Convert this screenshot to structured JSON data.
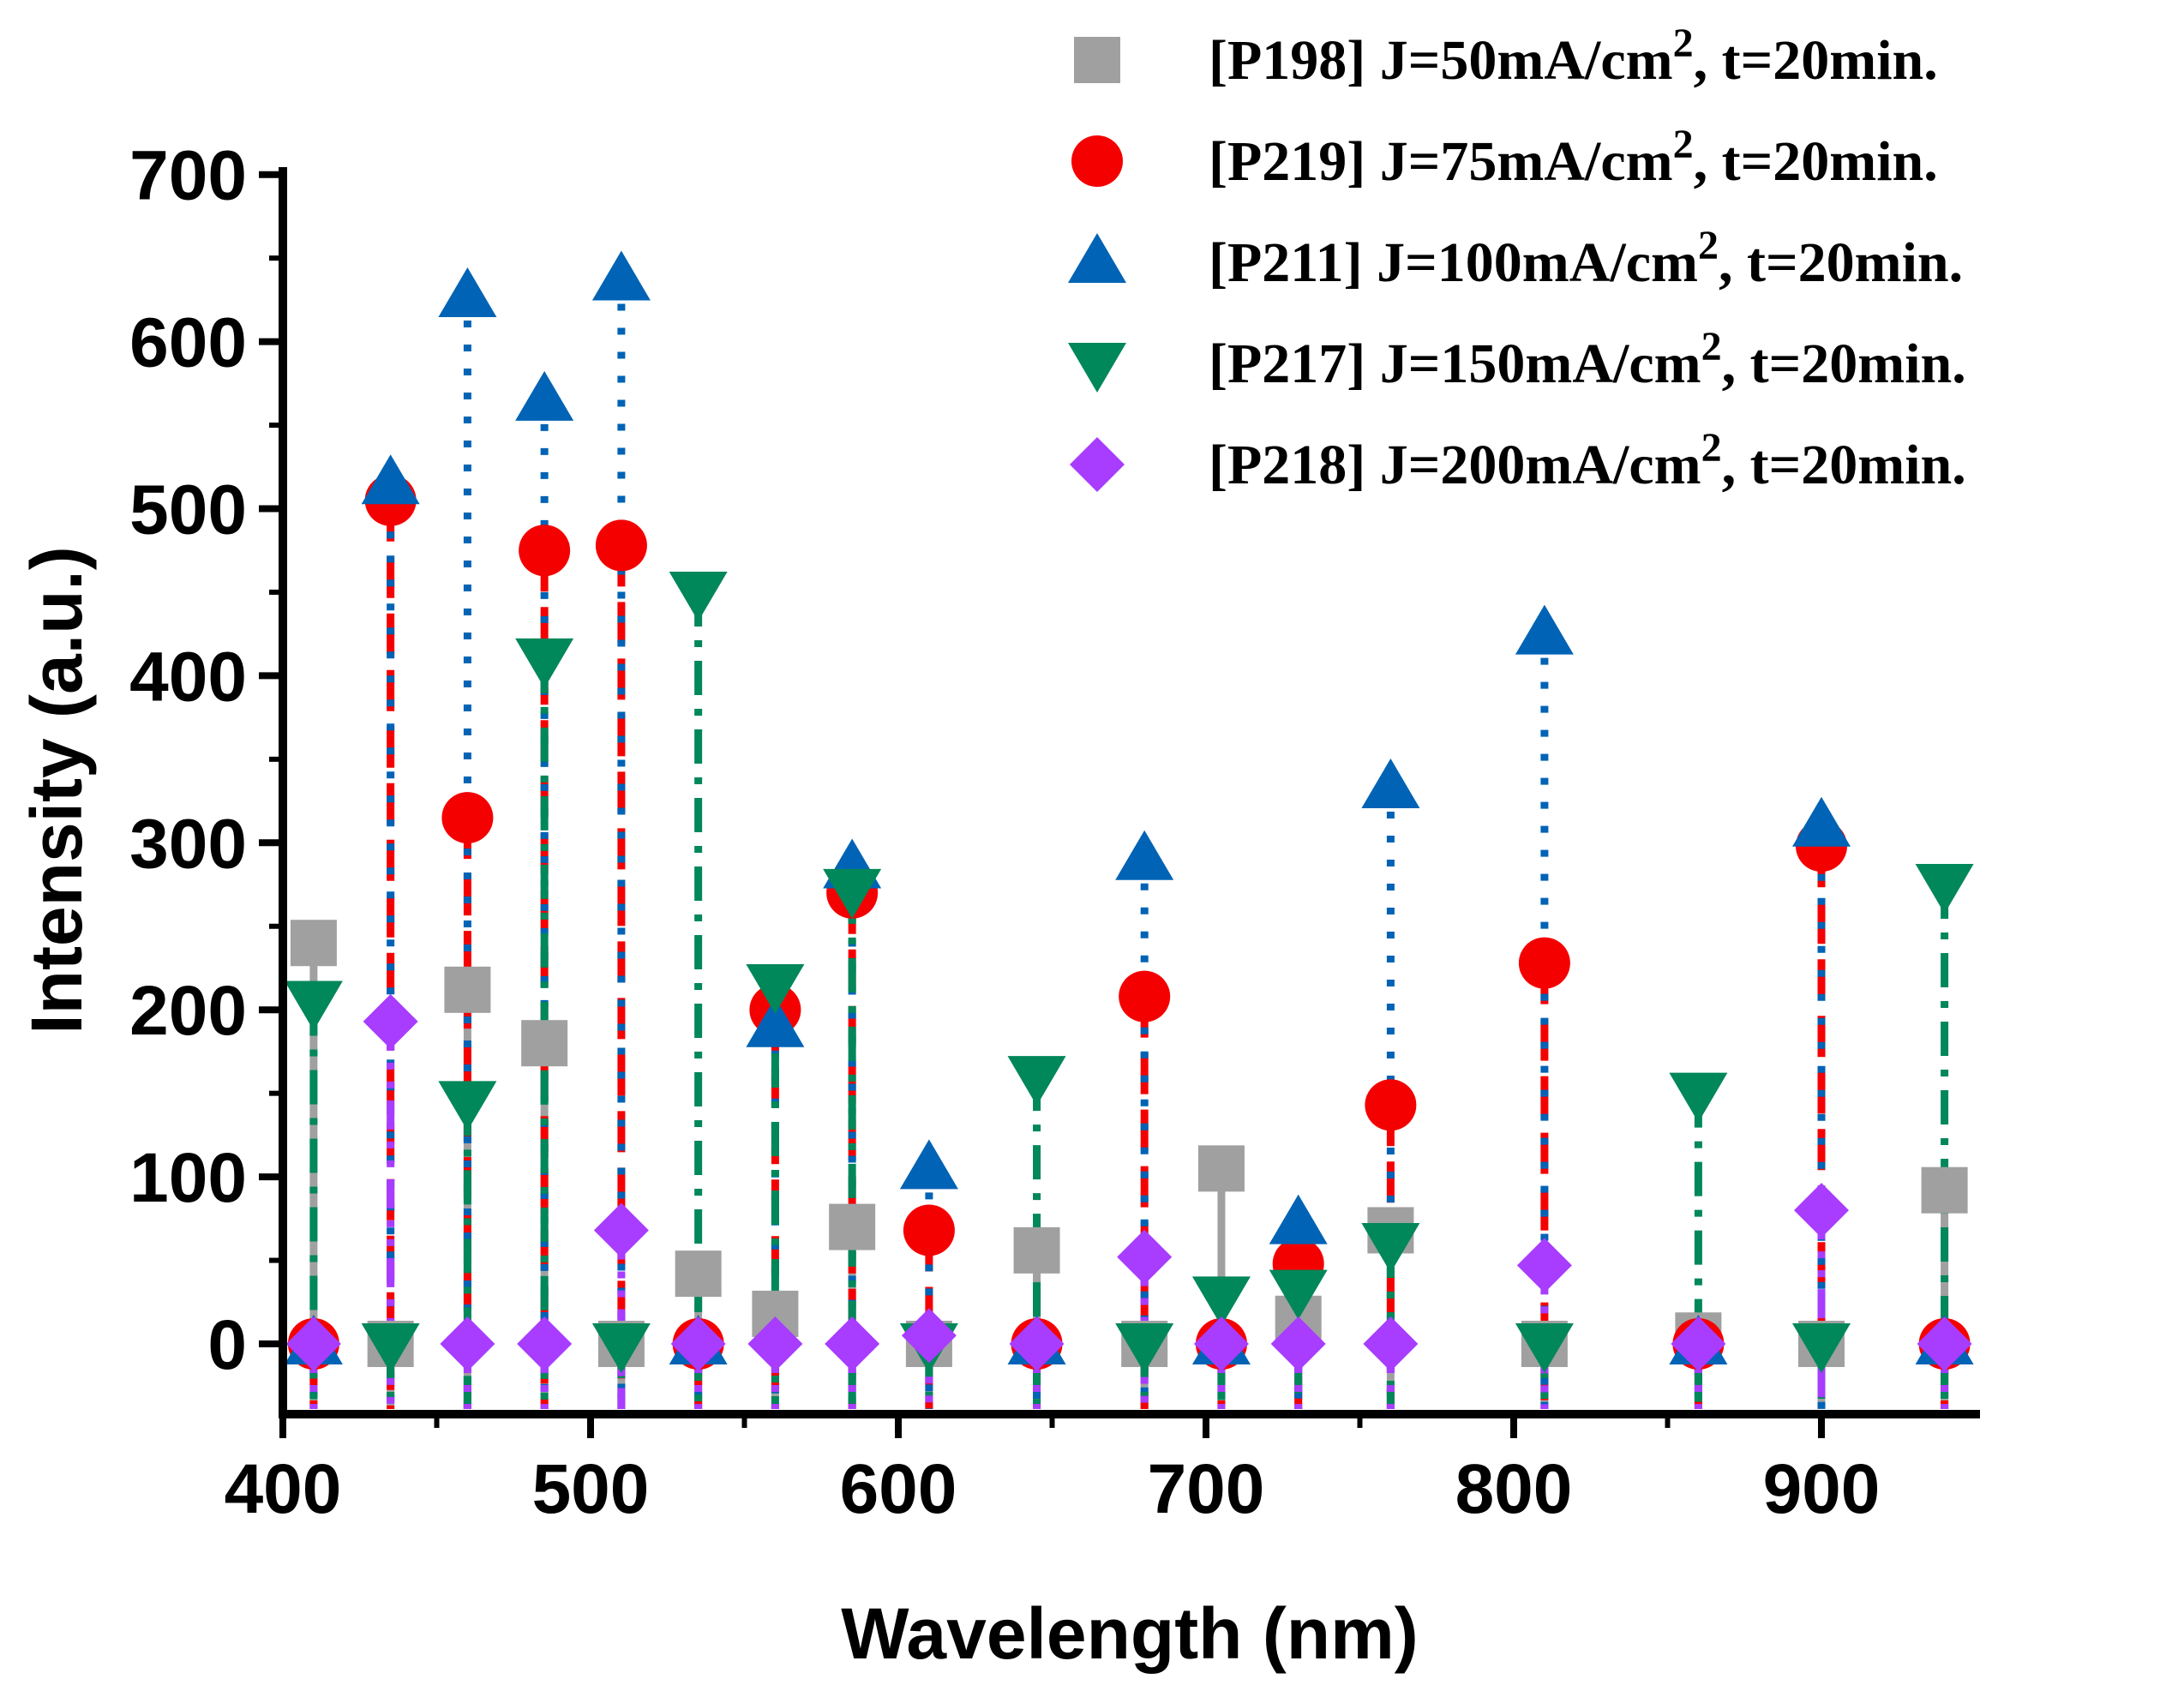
{
  "chart_data": {
    "type": "scatter",
    "title": "",
    "xlabel": "Wavelength (nm)",
    "ylabel": "Intensity (a.u.)",
    "xlim": [
      400,
      950
    ],
    "ylim": [
      -40,
      700
    ],
    "xticks": [
      400,
      500,
      600,
      700,
      800,
      900
    ],
    "yticks": [
      0,
      100,
      200,
      300,
      400,
      500,
      600,
      700
    ],
    "x_tick_labels": [
      "400",
      "500",
      "600",
      "700",
      "800",
      "900"
    ],
    "y_tick_labels": [
      "0",
      "100",
      "200",
      "300",
      "400",
      "500",
      "600",
      "700"
    ],
    "grid": false,
    "legend_position": "top-right",
    "series": [
      {
        "name": "[P198] J=50mA/cm2, t=20min.",
        "label_main": "[P198] J=50mA/cm",
        "label_sup": "2",
        "label_tail": ", t=20min.",
        "marker": "square",
        "line_style": "solid",
        "color": "#a0a0a0",
        "points": [
          [
            410,
            240
          ],
          [
            435,
            0
          ],
          [
            460,
            212
          ],
          [
            485,
            180
          ],
          [
            510,
            0
          ],
          [
            535,
            42
          ],
          [
            560,
            18
          ],
          [
            585,
            70
          ],
          [
            610,
            0
          ],
          [
            645,
            56
          ],
          [
            680,
            0
          ],
          [
            705,
            105
          ],
          [
            730,
            15
          ],
          [
            760,
            68
          ],
          [
            810,
            0
          ],
          [
            860,
            5
          ],
          [
            900,
            0
          ],
          [
            940,
            92
          ]
        ]
      },
      {
        "name": "[P219] J=75mA/cm2, t=20min.",
        "label_main": "[P219] J=75mA/cm",
        "label_sup": "2",
        "label_tail": ", t=20min.",
        "marker": "circle",
        "line_style": "dashed",
        "color": "#f50000",
        "points": [
          [
            410,
            0
          ],
          [
            435,
            505
          ],
          [
            460,
            315
          ],
          [
            485,
            475
          ],
          [
            510,
            478
          ],
          [
            535,
            0
          ],
          [
            560,
            200
          ],
          [
            585,
            270
          ],
          [
            610,
            68
          ],
          [
            645,
            0
          ],
          [
            680,
            208
          ],
          [
            705,
            0
          ],
          [
            730,
            48
          ],
          [
            760,
            143
          ],
          [
            810,
            228
          ],
          [
            860,
            0
          ],
          [
            900,
            298
          ],
          [
            940,
            0
          ]
        ]
      },
      {
        "name": "[P211] J=100mA/cm2, t=20min.",
        "label_main": "[P211] J=100mA/cm",
        "label_sup": "2",
        "label_tail": ", t=20min.",
        "marker": "triangle-up",
        "line_style": "dotted",
        "color": "#0063b5",
        "points": [
          [
            410,
            0
          ],
          [
            435,
            515
          ],
          [
            460,
            627
          ],
          [
            485,
            565
          ],
          [
            510,
            637
          ],
          [
            535,
            0
          ],
          [
            560,
            190
          ],
          [
            585,
            285
          ],
          [
            610,
            105
          ],
          [
            645,
            0
          ],
          [
            680,
            290
          ],
          [
            705,
            0
          ],
          [
            730,
            72
          ],
          [
            760,
            333
          ],
          [
            810,
            425
          ],
          [
            860,
            0
          ],
          [
            900,
            310
          ],
          [
            940,
            0
          ]
        ]
      },
      {
        "name": "[P217] J=150mA/cm2, t=20min.",
        "label_main": "[P217] J=150mA/cm",
        "label_sup": "2",
        "label_tail": ", t=20min.",
        "marker": "triangle-down",
        "line_style": "dash-dot",
        "color": "#00875a",
        "points": [
          [
            410,
            205
          ],
          [
            435,
            0
          ],
          [
            460,
            145
          ],
          [
            485,
            410
          ],
          [
            510,
            0
          ],
          [
            535,
            450
          ],
          [
            560,
            215
          ],
          [
            585,
            272
          ],
          [
            610,
            0
          ],
          [
            645,
            160
          ],
          [
            680,
            0
          ],
          [
            705,
            28
          ],
          [
            730,
            32
          ],
          [
            760,
            60
          ],
          [
            810,
            0
          ],
          [
            860,
            150
          ],
          [
            900,
            0
          ],
          [
            940,
            275
          ]
        ]
      },
      {
        "name": "[P218] J=200mA/cm2, t=20min.",
        "label_main": "[P218] J=200mA/cm",
        "label_sup": "2",
        "label_tail": ", t=20min.",
        "marker": "diamond",
        "line_style": "dash-dot-dot",
        "color": "#a83cff",
        "points": [
          [
            410,
            0
          ],
          [
            435,
            193
          ],
          [
            460,
            0
          ],
          [
            485,
            0
          ],
          [
            510,
            68
          ],
          [
            535,
            0
          ],
          [
            560,
            0
          ],
          [
            585,
            0
          ],
          [
            610,
            5
          ],
          [
            645,
            0
          ],
          [
            680,
            52
          ],
          [
            705,
            0
          ],
          [
            730,
            0
          ],
          [
            760,
            0
          ],
          [
            810,
            47
          ],
          [
            860,
            0
          ],
          [
            900,
            80
          ],
          [
            940,
            0
          ]
        ]
      }
    ]
  }
}
